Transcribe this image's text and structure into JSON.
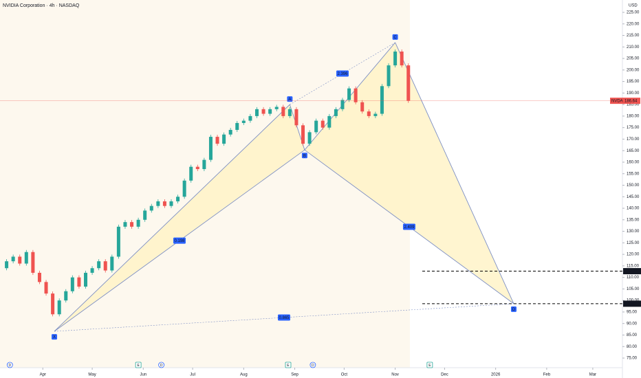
{
  "chart_data": {
    "type": "candlestick",
    "title": "NVIDIA Corporation · 4h · NASDAQ",
    "currency": "USD",
    "symbol": "NVDA",
    "last_price": 186.64,
    "levels": [
      112.71,
      98.59
    ],
    "x": [
      0,
      4,
      8,
      12,
      16,
      20,
      24,
      28,
      32,
      36,
      40,
      44,
      48,
      52,
      56,
      60,
      64,
      68,
      72,
      76,
      80,
      84,
      88,
      92,
      96,
      100,
      104,
      108,
      112,
      116,
      120,
      124,
      128,
      132,
      136,
      140,
      144,
      148,
      152,
      156,
      160,
      164,
      168,
      172,
      176,
      180,
      184,
      188,
      192,
      196,
      200,
      204,
      208,
      212,
      216,
      220,
      224,
      228,
      232,
      236,
      240,
      244,
      248
    ],
    "values": [
      114,
      117,
      119,
      116,
      121,
      112,
      108,
      103,
      94,
      100,
      104,
      110,
      106,
      112,
      114,
      117,
      113,
      119,
      132,
      134,
      132,
      135,
      139,
      141,
      143,
      141,
      143,
      145,
      152,
      158,
      157,
      161,
      171,
      168,
      172,
      174,
      177,
      178,
      180,
      183,
      181,
      183,
      184,
      180,
      183,
      176,
      168,
      173,
      178,
      175,
      180,
      183,
      187,
      192,
      186,
      182,
      180,
      181,
      193,
      202,
      208,
      202,
      186.64
    ],
    "pattern": {
      "points": [
        {
          "label": "X",
          "x": 33,
          "y": 86.6
        },
        {
          "label": "A",
          "x": 176,
          "y": 185
        },
        {
          "label": "B",
          "x": 185,
          "y": 165.3
        },
        {
          "label": "C",
          "x": 240,
          "y": 211.9
        },
        {
          "label": "D",
          "x": 312,
          "y": 98.59
        }
      ],
      "ratios": [
        0.198,
        2.396,
        2.409,
        0.865
      ]
    },
    "events": [
      {
        "label": "D",
        "x": 6
      },
      {
        "label": "E",
        "x": 84
      },
      {
        "label": "D",
        "x": 98
      },
      {
        "label": "E",
        "x": 175
      },
      {
        "label": "D",
        "x": 190
      },
      {
        "label": "E",
        "x": 261
      }
    ],
    "xlim": [
      0,
      378
    ],
    "xticks": [
      {
        "value": 26,
        "label": "Apr"
      },
      {
        "value": 56,
        "label": "May"
      },
      {
        "value": 87,
        "label": "Jun"
      },
      {
        "value": 117,
        "label": "Jul"
      },
      {
        "value": 148,
        "label": "Aug"
      },
      {
        "value": 179,
        "label": "Sep"
      },
      {
        "value": 209,
        "label": "Oct"
      },
      {
        "value": 240,
        "label": "Nov"
      },
      {
        "value": 270,
        "label": "Dec"
      },
      {
        "value": 301,
        "label": "2026"
      },
      {
        "value": 332,
        "label": "Feb"
      },
      {
        "value": 360,
        "label": "Mar"
      }
    ],
    "ylim": [
      75,
      225
    ],
    "yticks": [
      {
        "value": 75,
        "label": "75.00"
      },
      {
        "value": 80,
        "label": "80.00"
      },
      {
        "value": 85,
        "label": "85.00"
      },
      {
        "value": 90,
        "label": "90.00"
      },
      {
        "value": 95,
        "label": "95.00"
      },
      {
        "value": 100,
        "label": "100.00"
      },
      {
        "value": 105,
        "label": "105.00"
      },
      {
        "value": 110,
        "label": "110.00"
      },
      {
        "value": 115,
        "label": "115.00"
      },
      {
        "value": 120,
        "label": "120.00"
      },
      {
        "value": 125,
        "label": "125.00"
      },
      {
        "value": 130,
        "label": "130.00"
      },
      {
        "value": 135,
        "label": "135.00"
      },
      {
        "value": 140,
        "label": "140.00"
      },
      {
        "value": 145,
        "label": "145.00"
      },
      {
        "value": 150,
        "label": "150.00"
      },
      {
        "value": 155,
        "label": "155.00"
      },
      {
        "value": 160,
        "label": "160.00"
      },
      {
        "value": 165,
        "label": "165.00"
      },
      {
        "value": 170,
        "label": "170.00"
      },
      {
        "value": 175,
        "label": "175.00"
      },
      {
        "value": 180,
        "label": "180.00"
      },
      {
        "value": 185,
        "label": "185.00"
      },
      {
        "value": 190,
        "label": "190.00"
      },
      {
        "value": 195,
        "label": "195.00"
      },
      {
        "value": 200,
        "label": "200.00"
      },
      {
        "value": 205,
        "label": "205.00"
      },
      {
        "value": 210,
        "label": "210.00"
      },
      {
        "value": 215,
        "label": "215.00"
      },
      {
        "value": 220,
        "label": "220.00"
      },
      {
        "value": 225,
        "label": "225.00"
      }
    ],
    "up_color": "#26a69a",
    "down_color": "#ef5350",
    "pattern_color": "#fff3c4",
    "line_color": "#7d8fc4",
    "label_color": "#2962ff"
  }
}
